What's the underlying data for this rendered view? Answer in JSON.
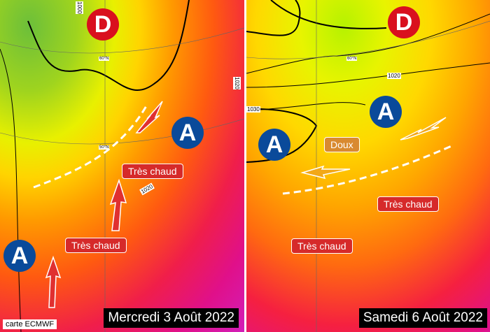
{
  "source_label": "carte ECMWF",
  "colors": {
    "high": "#0a4a9a",
    "low": "#d9101e",
    "hot_label": "#d62a2a",
    "mild_label": "#d98a30"
  },
  "left_map": {
    "date": "Mercredi 3 Août 2022",
    "low": "D",
    "highs": [
      "A",
      "A"
    ],
    "labels": [
      "Très chaud",
      "Très chaud"
    ],
    "isobars": [
      "1000",
      "1020",
      "1020"
    ],
    "latitudes": [
      "60°N",
      "50°N"
    ]
  },
  "right_map": {
    "date": "Samedi 6 Août 2022",
    "low": "D",
    "highs": [
      "A",
      "A"
    ],
    "labels": [
      "Très chaud",
      "Très chaud"
    ],
    "mild_label": "Doux",
    "isobars": [
      "1020",
      "1030"
    ],
    "latitudes": [
      "60°N"
    ]
  }
}
